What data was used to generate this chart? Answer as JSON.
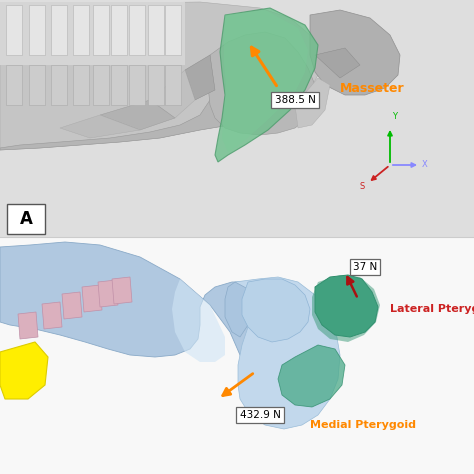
{
  "figure_bg": "#ffffff",
  "top_bg": "#e0e0e0",
  "bottom_bg": "#ffffff",
  "top_panel": {
    "label": "A",
    "force_1_text": "388.5 N",
    "force_1_color": "#FF8800",
    "muscle_1_text": "Masseter",
    "muscle_1_color": "#FF8800",
    "axes_x_color": "#8888ff",
    "axes_y_color": "#00bb00",
    "axes_s_color": "#cc2222"
  },
  "bottom_panel": {
    "force_2_text": "37 N",
    "muscle_2_text": "Lateral Pterygoid",
    "muscle_2_color": "#cc2222",
    "force_3_text": "432.9 N",
    "muscle_3_text": "Medial Pterygoid",
    "muscle_3_color": "#FF8800",
    "arrow_color_orange": "#FF8800",
    "arrow_color_red": "#aa1111"
  }
}
